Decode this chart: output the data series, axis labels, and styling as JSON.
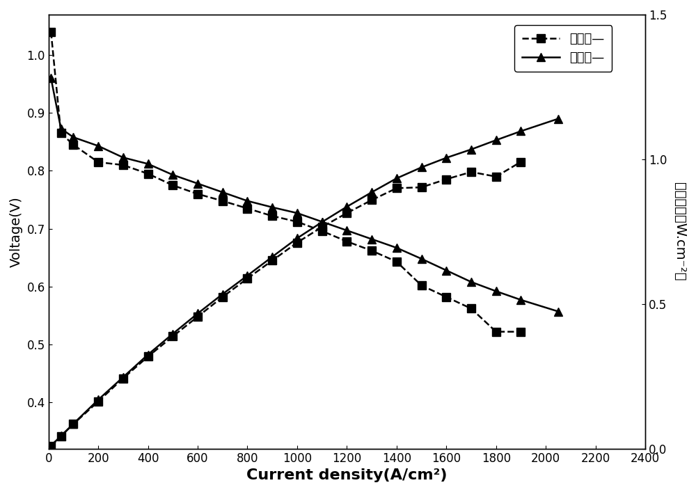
{
  "title": "",
  "xlabel": "Current density(A/cm²)",
  "ylabel_left": "Voltage(V)",
  "ylabel_right": "功率密度（W.cm⁻²）",
  "legend_square": "比较例—",
  "legend_triangle": "实施例—",
  "xlim": [
    0,
    2400
  ],
  "ylim_left": [
    0.32,
    1.07
  ],
  "ylim_right": [
    0.0,
    1.5
  ],
  "xticks": [
    0,
    200,
    400,
    600,
    800,
    1000,
    1200,
    1400,
    1600,
    1800,
    2000,
    2200,
    2400
  ],
  "yticks_left": [
    0.4,
    0.5,
    0.6,
    0.7,
    0.8,
    0.9,
    1.0
  ],
  "yticks_right": [
    0.0,
    0.5,
    1.0,
    1.5
  ],
  "pol_sq_x": [
    10,
    50,
    100,
    200,
    300,
    400,
    500,
    600,
    700,
    800,
    900,
    1000,
    1100,
    1200,
    1300,
    1400,
    1500,
    1600,
    1700,
    1800,
    1900
  ],
  "pol_sq_y": [
    1.04,
    0.865,
    0.845,
    0.815,
    0.81,
    0.795,
    0.775,
    0.76,
    0.748,
    0.735,
    0.722,
    0.712,
    0.696,
    0.678,
    0.662,
    0.643,
    0.602,
    0.582,
    0.562,
    0.522,
    0.522
  ],
  "pol_tri_x": [
    10,
    50,
    100,
    200,
    300,
    400,
    500,
    600,
    700,
    800,
    900,
    1000,
    1100,
    1200,
    1300,
    1400,
    1500,
    1600,
    1700,
    1800,
    1900,
    2050
  ],
  "pol_tri_y": [
    0.96,
    0.873,
    0.858,
    0.843,
    0.823,
    0.812,
    0.793,
    0.778,
    0.763,
    0.748,
    0.737,
    0.727,
    0.712,
    0.697,
    0.682,
    0.667,
    0.648,
    0.628,
    0.608,
    0.592,
    0.577,
    0.557
  ],
  "pow_sq_x": [
    10,
    50,
    100,
    200,
    300,
    400,
    500,
    600,
    700,
    800,
    900,
    1000,
    1100,
    1200,
    1300,
    1400,
    1500,
    1600,
    1700,
    1800,
    1900
  ],
  "pow_sq_y": [
    0.01,
    0.043,
    0.085,
    0.163,
    0.243,
    0.318,
    0.388,
    0.456,
    0.524,
    0.588,
    0.65,
    0.712,
    0.766,
    0.814,
    0.859,
    0.9,
    0.903,
    0.931,
    0.956,
    0.94,
    0.991
  ],
  "pow_tri_x": [
    10,
    50,
    100,
    200,
    300,
    400,
    500,
    600,
    700,
    800,
    900,
    1000,
    1100,
    1200,
    1300,
    1400,
    1500,
    1600,
    1700,
    1800,
    1900,
    2050
  ],
  "pow_tri_y": [
    0.01,
    0.044,
    0.086,
    0.169,
    0.247,
    0.325,
    0.397,
    0.467,
    0.534,
    0.598,
    0.663,
    0.727,
    0.783,
    0.836,
    0.886,
    0.934,
    0.972,
    1.005,
    1.034,
    1.066,
    1.097,
    1.14
  ],
  "line_color": "#000000",
  "bg_color": "#ffffff",
  "fontsize_xlabel": 16,
  "fontsize_ylabel": 14,
  "fontsize_tick": 12,
  "fontsize_legend": 13,
  "marker_size_square": 8,
  "marker_size_triangle": 9,
  "linewidth": 1.8,
  "dpi": 100
}
